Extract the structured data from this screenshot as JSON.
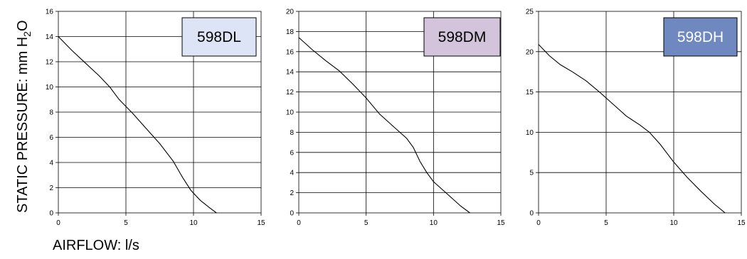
{
  "ylabel": "STATIC PRESSURE: mm H",
  "ylabel_sub": "2",
  "ylabel_end": "O",
  "xlabel": "AIRFLOW: l/s",
  "chart_data": [
    {
      "type": "line",
      "label": "598DL",
      "label_bg": "#dde4f6",
      "label_color": "#000000",
      "xlim": [
        0,
        15
      ],
      "ylim": [
        0,
        16
      ],
      "xticks": [
        0,
        5,
        10,
        15
      ],
      "yticks": [
        0,
        2,
        4,
        6,
        8,
        10,
        12,
        14,
        16
      ],
      "x": [
        0,
        1,
        2,
        3,
        3.8,
        4.5,
        5.5,
        6.5,
        7.5,
        8.5,
        9.2,
        9.8,
        10.5,
        11.2,
        11.7
      ],
      "y": [
        14,
        12.9,
        11.9,
        10.9,
        10.0,
        9.0,
        7.9,
        6.7,
        5.5,
        4.1,
        2.8,
        1.8,
        1.0,
        0.4,
        0
      ]
    },
    {
      "type": "line",
      "label": "598DM",
      "label_bg": "#d3c4dc",
      "label_color": "#000000",
      "xlim": [
        0,
        15
      ],
      "ylim": [
        0,
        20
      ],
      "xticks": [
        0,
        5,
        10,
        15
      ],
      "yticks": [
        0,
        2,
        4,
        6,
        8,
        10,
        12,
        14,
        16,
        18,
        20
      ],
      "x": [
        0,
        1,
        2,
        3,
        4,
        5,
        6,
        7,
        8,
        8.5,
        9,
        9.5,
        10,
        11,
        12,
        12.7
      ],
      "y": [
        17.4,
        16.2,
        15.1,
        14.1,
        12.8,
        11.4,
        9.8,
        8.6,
        7.4,
        6.5,
        5.1,
        4.0,
        3.1,
        1.9,
        0.7,
        0
      ]
    },
    {
      "type": "line",
      "label": "598DH",
      "label_bg": "#6f88c0",
      "label_color": "#ffffff",
      "xlim": [
        0,
        15
      ],
      "ylim": [
        0,
        25
      ],
      "xticks": [
        0,
        5,
        10,
        15
      ],
      "yticks": [
        0,
        5,
        10,
        15,
        20,
        25
      ],
      "x": [
        0,
        0.8,
        1.6,
        2.5,
        3.5,
        4.5,
        5.5,
        6.5,
        7.5,
        8.2,
        9.0,
        10.0,
        11.0,
        12.0,
        13.0,
        13.8
      ],
      "y": [
        20.9,
        19.5,
        18.4,
        17.5,
        16.4,
        15.0,
        13.5,
        12.0,
        10.9,
        10.0,
        8.5,
        6.3,
        4.4,
        2.7,
        1.1,
        0
      ]
    }
  ]
}
